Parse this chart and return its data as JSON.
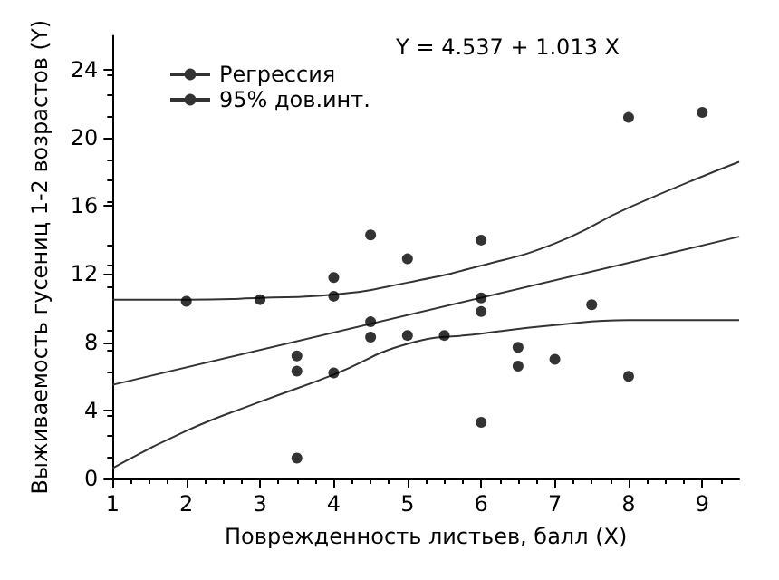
{
  "chart_data": {
    "type": "scatter",
    "xlabel": "Поврежденность листьев, балл (X)",
    "ylabel": "Выживаемость гусениц 1-2 возрастов (Y)",
    "annotations": [
      "Y = 4.537 + 1.013 X"
    ],
    "xlim": [
      1,
      9.5
    ],
    "xticks": [
      1,
      2,
      3,
      4,
      5,
      6,
      7,
      8,
      9
    ],
    "ylim": [
      0,
      26
    ],
    "yticks": [
      0,
      4,
      8,
      12,
      16,
      20,
      24
    ],
    "grid": false,
    "legend": "top left",
    "series": [
      {
        "color": "#000000",
        "marker": "circle",
        "x": [
          2,
          3,
          3.5,
          3.5,
          3.5,
          4,
          4,
          4,
          4.5,
          4.5,
          4.5,
          5,
          5,
          5.5,
          6,
          6,
          6,
          6,
          6.5,
          6.5,
          7,
          7.5,
          8,
          8,
          9
        ],
        "values": [
          10.4,
          10.5,
          7.2,
          6.3,
          1.2,
          11.8,
          10.7,
          6.2,
          14.3,
          9.2,
          8.3,
          12.9,
          8.4,
          8.4,
          14.0,
          10.6,
          9.8,
          3.3,
          7.7,
          6.6,
          7.0,
          10.2,
          21.2,
          6.0,
          21.5
        ]
      },
      {
        "type": "line",
        "name": "Регрессия",
        "marker": "none",
        "color": "#333333",
        "x": [
          1,
          9.5
        ],
        "values": [
          5.5,
          14.2
        ]
      },
      {
        "type": "line",
        "name": "95% дов.инт.",
        "marker": "none",
        "color": "#333333",
        "x": [
          1,
          2,
          3,
          4,
          5,
          6,
          7,
          8,
          9.5
        ],
        "values": [
          10.5,
          10.5,
          10.6,
          10.8,
          11.5,
          12.5,
          13.8,
          15.9,
          18.6
        ]
      },
      {
        "type": "line",
        "marker": "none",
        "color": "#333333",
        "x": [
          1,
          2,
          3,
          4,
          5,
          6,
          7,
          8,
          9.5
        ],
        "values": [
          0.6,
          2.8,
          4.5,
          6.1,
          7.9,
          8.5,
          9.0,
          9.3,
          9.3
        ]
      }
    ]
  }
}
